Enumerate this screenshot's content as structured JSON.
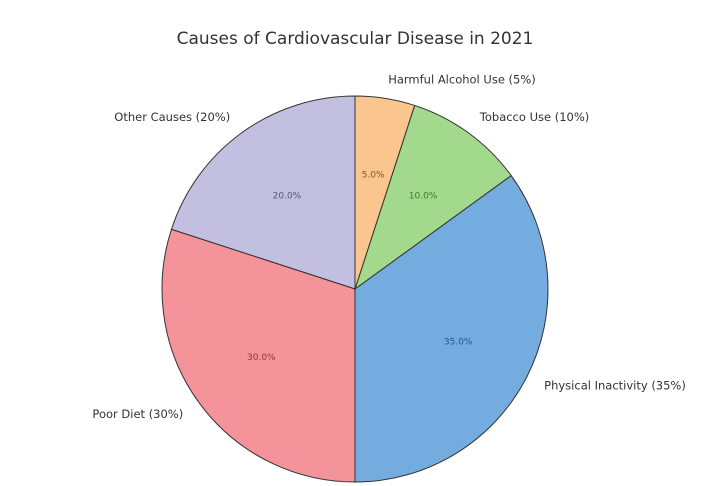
{
  "chart_data": {
    "type": "pie",
    "title": "Causes of Cardiovascular Disease in 2021",
    "start_angle_deg": 90,
    "direction": "counterclockwise",
    "slices": [
      {
        "label": "Other Causes (20%)",
        "value": 20.0,
        "pct_text": "20.0%",
        "color": "#c3bfe0",
        "pct_color": "#5a5580"
      },
      {
        "label": "Poor Diet (30%)",
        "value": 30.0,
        "pct_text": "30.0%",
        "color": "#f4949a",
        "pct_color": "#9a3038"
      },
      {
        "label": "Physical Inactivity (35%)",
        "value": 35.0,
        "pct_text": "35.0%",
        "color": "#75ace0",
        "pct_color": "#1e5a94"
      },
      {
        "label": "Tobacco Use (10%)",
        "value": 10.0,
        "pct_text": "10.0%",
        "color": "#a2d98c",
        "pct_color": "#3e7a2e"
      },
      {
        "label": "Harmful Alcohol Use (5%)",
        "value": 5.0,
        "pct_text": "5.0%",
        "color": "#fbc590",
        "pct_color": "#8a5520"
      }
    ],
    "legend": "none"
  }
}
